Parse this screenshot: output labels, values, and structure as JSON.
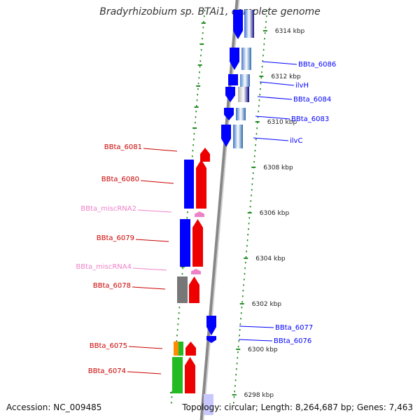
{
  "title": "Bradyrhizobium sp. BTAi1, complete genome",
  "footer": {
    "accession": "Accession: NC_009485",
    "topology": "Topology: circular; Length: 8,264,687 bp; Genes: 7,463"
  },
  "colors": {
    "forward": "#0000ff",
    "reverse": "#ee0000",
    "misc_rna": "#ee82c8",
    "pseudo_gray": "#777777",
    "green_gene": "#22bb22",
    "orange_gene": "#ff8c00",
    "backbone": "#888888",
    "tick_dots": "#228b22"
  },
  "ticks": [
    {
      "label": "6314 kbp"
    },
    {
      "label": "6312 kbp"
    },
    {
      "label": "6310 kbp"
    },
    {
      "label": "6308 kbp"
    },
    {
      "label": "6306 kbp"
    },
    {
      "label": "6304 kbp"
    },
    {
      "label": "6302 kbp"
    },
    {
      "label": "6300 kbp"
    },
    {
      "label": "6298 kbp"
    }
  ],
  "genes_right": [
    {
      "label": "BBta_6086"
    },
    {
      "label": "ilvH"
    },
    {
      "label": "BBta_6084"
    },
    {
      "label": "BBta_6083"
    },
    {
      "label": "ilvC"
    },
    {
      "label": "BBta_6077"
    },
    {
      "label": "BBta_6076"
    }
  ],
  "genes_left": [
    {
      "label": "BBta_6081",
      "kind": "gene"
    },
    {
      "label": "BBta_6080",
      "kind": "gene"
    },
    {
      "label": "BBta_miscRNA2",
      "kind": "misc"
    },
    {
      "label": "BBta_6079",
      "kind": "gene"
    },
    {
      "label": "BBta_miscRNA4",
      "kind": "misc"
    },
    {
      "label": "BBta_6078",
      "kind": "gene"
    },
    {
      "label": "BBta_6075",
      "kind": "gene"
    },
    {
      "label": "BBta_6074",
      "kind": "gene"
    }
  ]
}
